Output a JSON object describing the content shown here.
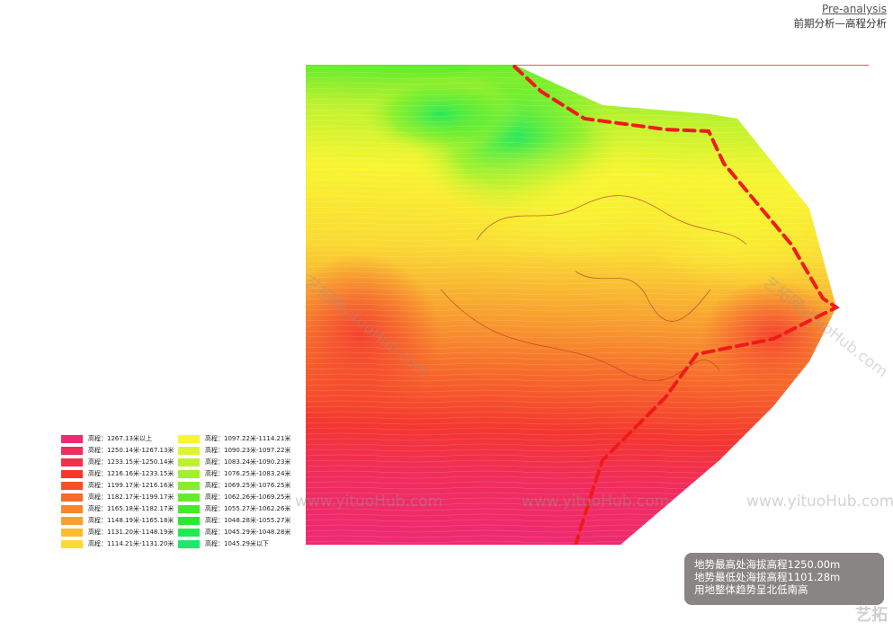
{
  "header": {
    "title_en": "Pre-analysis",
    "title_cn": "前期分析—高程分析"
  },
  "legend": {
    "items": [
      {
        "label": "高程：1267.13米以上",
        "color": "#ee2a72"
      },
      {
        "label": "高程：1250.14米-1267.13米",
        "color": "#f02d5c"
      },
      {
        "label": "高程：1233.15米-1250.14米",
        "color": "#f23048"
      },
      {
        "label": "高程：1216.16米-1233.15米",
        "color": "#f4362f"
      },
      {
        "label": "高程：1199.17米-1216.16米",
        "color": "#f5502a"
      },
      {
        "label": "高程：1182.17米-1199.17米",
        "color": "#f76a2a"
      },
      {
        "label": "高程：1165.18米-1182.17米",
        "color": "#f7852d"
      },
      {
        "label": "高程：1148.19米-1165.18米",
        "color": "#f8a02f"
      },
      {
        "label": "高程：1131.20米-1148.19米",
        "color": "#f9bc30"
      },
      {
        "label": "高程：1114.21米-1131.20米",
        "color": "#fadb33"
      },
      {
        "label": "高程：1097.22米-1114.21米",
        "color": "#f8f531"
      },
      {
        "label": "高程：1090.23米-1097.22米",
        "color": "#ddf430"
      },
      {
        "label": "高程：1083.24米-1090.23米",
        "color": "#bff22e"
      },
      {
        "label": "高程：1076.25米-1083.24米",
        "color": "#a0f02d"
      },
      {
        "label": "高程：1069.25米-1076.25米",
        "color": "#82ee2c"
      },
      {
        "label": "高程：1062.26米-1069.25米",
        "color": "#62ec2b"
      },
      {
        "label": "高程：1055.27米-1062.26米",
        "color": "#45ea2c"
      },
      {
        "label": "高程：1048.28米-1055.27米",
        "color": "#2de832"
      },
      {
        "label": "高程：1045.29米-1048.28米",
        "color": "#25e850"
      },
      {
        "label": "高程：1045.29米以下",
        "color": "#22e66c"
      }
    ]
  },
  "watermark": {
    "text": "www.yituoHub.com",
    "diag_text": "艺拓网yituoHub.com",
    "corner": "艺拓"
  },
  "summary": {
    "line1": "地势最高处海拔高程1250.00m",
    "line2": "地势最低处海拔高程1101.28m",
    "line3": "用地整体趋势呈北低南高"
  }
}
